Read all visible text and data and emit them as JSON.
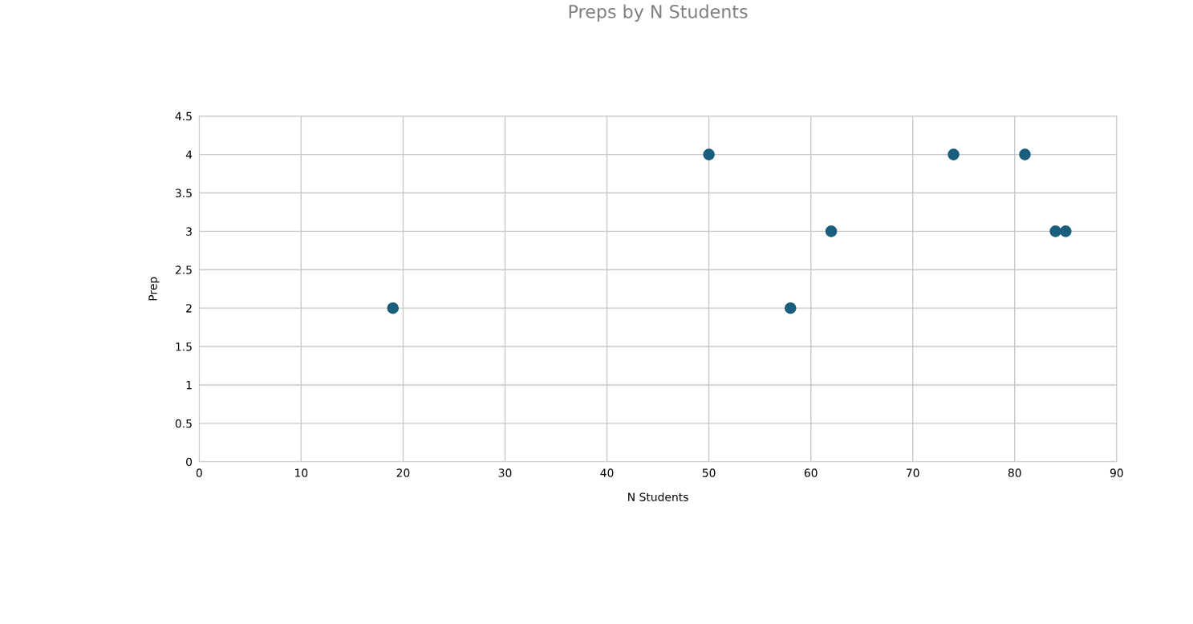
{
  "chart_data": {
    "type": "scatter",
    "title": "Preps by N Students",
    "xlabel": "N Students",
    "ylabel": "Prep",
    "x": [
      19,
      50,
      58,
      62,
      74,
      81,
      84,
      85
    ],
    "series": [
      {
        "color": "#1a5e7e",
        "values": [
          2,
          4,
          2,
          3,
          4,
          4,
          3,
          3
        ]
      }
    ],
    "xlim": [
      0,
      90
    ],
    "xticks": [
      0,
      10,
      20,
      30,
      40,
      50,
      60,
      70,
      80,
      90
    ],
    "ylim": [
      0,
      4.5
    ],
    "yticks": [
      0,
      0.5,
      1,
      1.5,
      2,
      2.5,
      3,
      3.5,
      4,
      4.5
    ],
    "grid": true,
    "marker": "circle"
  }
}
